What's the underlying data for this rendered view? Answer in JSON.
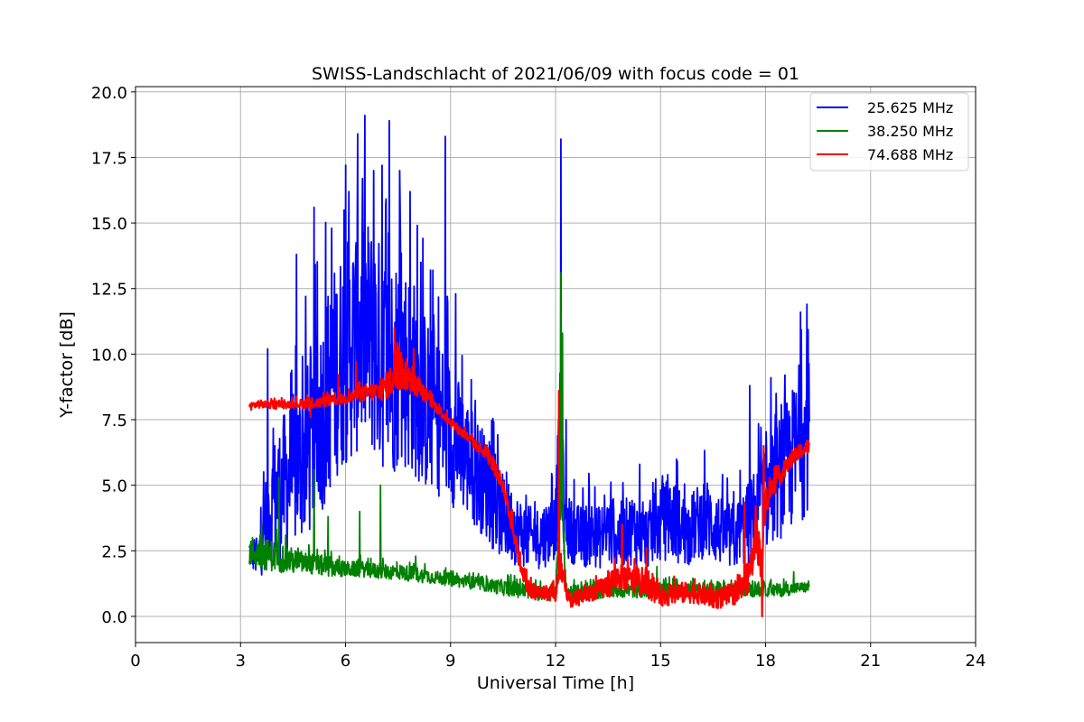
{
  "chart_data": {
    "type": "line",
    "title": "SWISS-Landschlacht of 2021/06/09 with focus code = 01",
    "xlabel": "Universal Time [h]",
    "ylabel": "Y-factor [dB]",
    "xlim": [
      0,
      24
    ],
    "ylim": [
      -1,
      20.2
    ],
    "xticks": [
      0,
      3,
      6,
      9,
      12,
      15,
      18,
      21,
      24
    ],
    "xtick_labels": [
      "0",
      "3",
      "6",
      "9",
      "12",
      "15",
      "18",
      "21",
      "24"
    ],
    "yticks": [
      0,
      2.5,
      5,
      7.5,
      10,
      12.5,
      15,
      17.5,
      20
    ],
    "ytick_labels": [
      "0.0",
      "2.5",
      "5.0",
      "7.5",
      "10.0",
      "12.5",
      "15.0",
      "17.5",
      "20.0"
    ],
    "grid": true,
    "legend_position": "top-right",
    "series": [
      {
        "name": "25.625 MHz",
        "color": "#0000ff",
        "x": [
          3.25,
          3.5,
          3.75,
          4.0,
          4.25,
          4.5,
          4.75,
          5.0,
          5.25,
          5.5,
          5.75,
          6.0,
          6.25,
          6.5,
          6.75,
          7.0,
          7.25,
          7.5,
          7.75,
          8.0,
          8.25,
          8.5,
          8.75,
          9.0,
          9.25,
          9.5,
          9.75,
          10.0,
          10.25,
          10.5,
          10.75,
          11.0,
          11.25,
          11.5,
          11.75,
          12.0,
          12.15,
          12.25,
          12.5,
          12.75,
          13.0,
          13.25,
          13.5,
          13.75,
          14.0,
          14.25,
          14.5,
          14.75,
          15.0,
          15.25,
          15.5,
          15.75,
          16.0,
          16.25,
          16.5,
          16.75,
          17.0,
          17.25,
          17.5,
          17.75,
          18.0,
          18.25,
          18.5,
          18.75,
          19.0,
          19.25
        ],
        "y": [
          2.5,
          2.2,
          3.8,
          4.5,
          5.0,
          5.5,
          6.0,
          6.5,
          7.5,
          8.5,
          9.5,
          10.0,
          10.5,
          11.0,
          10.5,
          10.0,
          9.5,
          9.8,
          9.5,
          9.0,
          8.2,
          7.8,
          7.5,
          7.0,
          6.5,
          6.0,
          5.5,
          5.0,
          4.2,
          3.8,
          3.5,
          3.2,
          3.0,
          3.0,
          3.2,
          3.5,
          7.0,
          3.5,
          3.2,
          3.0,
          3.2,
          3.0,
          3.3,
          3.0,
          3.2,
          3.4,
          3.0,
          3.2,
          3.5,
          3.8,
          3.5,
          3.2,
          3.5,
          3.8,
          3.5,
          3.2,
          3.0,
          3.2,
          3.5,
          4.0,
          4.5,
          5.0,
          5.5,
          6.0,
          6.5,
          7.0
        ],
        "amp": [
          0.6,
          0.8,
          2.0,
          2.5,
          2.8,
          3.0,
          3.2,
          3.5,
          3.8,
          4.0,
          4.2,
          4.3,
          4.5,
          4.6,
          4.5,
          4.4,
          4.3,
          4.2,
          4.0,
          3.8,
          3.5,
          3.2,
          3.0,
          2.8,
          2.5,
          2.3,
          2.2,
          2.0,
          1.8,
          1.6,
          1.5,
          1.3,
          1.2,
          1.2,
          1.3,
          1.3,
          3.0,
          1.3,
          1.2,
          1.2,
          1.3,
          1.2,
          1.4,
          1.3,
          1.3,
          1.4,
          1.2,
          1.3,
          1.5,
          1.6,
          1.5,
          1.3,
          1.4,
          1.6,
          1.5,
          1.3,
          1.3,
          1.4,
          1.6,
          1.8,
          2.0,
          2.2,
          2.5,
          2.7,
          3.0,
          2.8
        ],
        "peaks": [
          [
            3.78,
            10.2
          ],
          [
            4.6,
            13.8
          ],
          [
            5.1,
            15.6
          ],
          [
            5.6,
            14.8
          ],
          [
            6.1,
            16.2
          ],
          [
            6.35,
            18.4
          ],
          [
            6.55,
            19.1
          ],
          [
            6.8,
            17.0
          ],
          [
            7.05,
            17.2
          ],
          [
            7.25,
            18.9
          ],
          [
            7.55,
            17.0
          ],
          [
            7.85,
            16.2
          ],
          [
            8.15,
            13.5
          ],
          [
            8.5,
            13.2
          ],
          [
            8.85,
            18.3
          ],
          [
            9.15,
            12.3
          ],
          [
            10.6,
            5.5
          ],
          [
            12.15,
            18.2
          ],
          [
            12.3,
            7.5
          ],
          [
            14.4,
            5.8
          ],
          [
            14.85,
            4.7
          ],
          [
            17.55,
            8.8
          ],
          [
            18.15,
            9.1
          ],
          [
            18.55,
            9.2
          ],
          [
            19.0,
            11.6
          ],
          [
            19.18,
            11.9
          ]
        ]
      },
      {
        "name": "38.250 MHz",
        "color": "#008000",
        "x": [
          3.25,
          3.5,
          4.0,
          4.5,
          5.0,
          5.5,
          6.0,
          6.5,
          7.0,
          7.5,
          8.0,
          8.5,
          9.0,
          9.5,
          10.0,
          10.5,
          11.0,
          11.5,
          12.0,
          12.15,
          12.3,
          12.5,
          13.0,
          13.5,
          14.0,
          14.5,
          15.0,
          15.5,
          16.0,
          16.5,
          17.0,
          17.5,
          18.0,
          18.5,
          19.0,
          19.25
        ],
        "y": [
          2.5,
          2.4,
          2.3,
          2.1,
          2.0,
          1.9,
          1.8,
          1.8,
          1.7,
          1.7,
          1.6,
          1.5,
          1.4,
          1.3,
          1.2,
          1.1,
          1.0,
          0.9,
          0.9,
          5.0,
          1.0,
          0.9,
          0.9,
          1.0,
          1.0,
          1.0,
          1.0,
          1.0,
          1.0,
          1.0,
          1.0,
          1.0,
          1.0,
          1.0,
          1.1,
          1.1
        ],
        "amp": [
          0.6,
          0.6,
          0.6,
          0.5,
          0.4,
          0.4,
          0.3,
          0.3,
          0.3,
          0.3,
          0.3,
          0.25,
          0.25,
          0.25,
          0.25,
          0.3,
          0.3,
          0.3,
          0.3,
          1.0,
          0.3,
          0.3,
          0.3,
          0.3,
          0.3,
          0.3,
          0.3,
          0.3,
          0.25,
          0.25,
          0.25,
          0.25,
          0.25,
          0.25,
          0.2,
          0.2
        ],
        "peaks": [
          [
            3.6,
            3.5
          ],
          [
            4.1,
            5.3
          ],
          [
            5.1,
            5.6
          ],
          [
            5.5,
            3.8
          ],
          [
            6.4,
            4.0
          ],
          [
            7.0,
            5.0
          ],
          [
            8.0,
            2.3
          ],
          [
            12.15,
            13.1
          ],
          [
            12.2,
            10.8
          ],
          [
            14.9,
            1.9
          ],
          [
            17.4,
            1.7
          ],
          [
            18.8,
            1.7
          ]
        ]
      },
      {
        "name": "74.688 MHz",
        "color": "#ff0000",
        "x": [
          3.25,
          3.5,
          4.0,
          4.5,
          5.0,
          5.5,
          6.0,
          6.5,
          7.0,
          7.25,
          7.5,
          7.75,
          8.0,
          8.25,
          8.5,
          9.0,
          9.5,
          10.0,
          10.25,
          10.5,
          10.75,
          11.0,
          11.25,
          11.5,
          11.75,
          12.0,
          12.15,
          12.3,
          12.5,
          13.0,
          13.25,
          13.5,
          13.75,
          14.0,
          14.25,
          14.5,
          14.75,
          15.0,
          15.25,
          15.5,
          15.75,
          16.0,
          16.25,
          16.5,
          16.75,
          17.0,
          17.25,
          17.5,
          17.75,
          17.9,
          18.0,
          18.25,
          18.5,
          18.75,
          19.0,
          19.25
        ],
        "y": [
          8.0,
          8.1,
          8.05,
          8.1,
          8.1,
          8.2,
          8.3,
          8.5,
          8.6,
          8.9,
          9.3,
          9.2,
          8.8,
          8.5,
          8.1,
          7.4,
          6.8,
          6.2,
          5.7,
          5.0,
          3.5,
          2.0,
          1.0,
          0.9,
          0.9,
          0.8,
          2.0,
          0.7,
          0.6,
          0.9,
          1.0,
          1.2,
          1.5,
          1.5,
          1.3,
          1.2,
          1.0,
          0.8,
          0.8,
          0.9,
          0.9,
          0.9,
          0.8,
          0.7,
          0.7,
          0.8,
          0.9,
          1.5,
          3.0,
          2.0,
          4.5,
          5.0,
          5.5,
          6.0,
          6.3,
          6.5
        ],
        "amp": [
          0.15,
          0.15,
          0.15,
          0.15,
          0.2,
          0.2,
          0.2,
          0.3,
          0.4,
          0.6,
          0.8,
          0.6,
          0.4,
          0.3,
          0.2,
          0.2,
          0.2,
          0.2,
          0.3,
          0.3,
          0.4,
          0.4,
          0.3,
          0.3,
          0.3,
          0.3,
          0.8,
          0.3,
          0.3,
          0.3,
          0.4,
          0.5,
          0.5,
          0.5,
          0.5,
          0.4,
          0.4,
          0.4,
          0.4,
          0.4,
          0.4,
          0.4,
          0.4,
          0.4,
          0.4,
          0.4,
          0.4,
          0.6,
          0.8,
          0.8,
          0.6,
          0.4,
          0.3,
          0.3,
          0.3,
          0.3
        ],
        "peaks": [
          [
            5.0,
            7.6
          ],
          [
            5.8,
            9.2
          ],
          [
            6.3,
            9.7
          ],
          [
            7.4,
            11.0
          ],
          [
            7.95,
            10.2
          ],
          [
            12.1,
            8.6
          ],
          [
            13.9,
            3.5
          ],
          [
            14.6,
            2.6
          ],
          [
            17.4,
            4.3
          ],
          [
            17.9,
            0.0
          ],
          [
            17.95,
            6.5
          ]
        ]
      }
    ]
  }
}
